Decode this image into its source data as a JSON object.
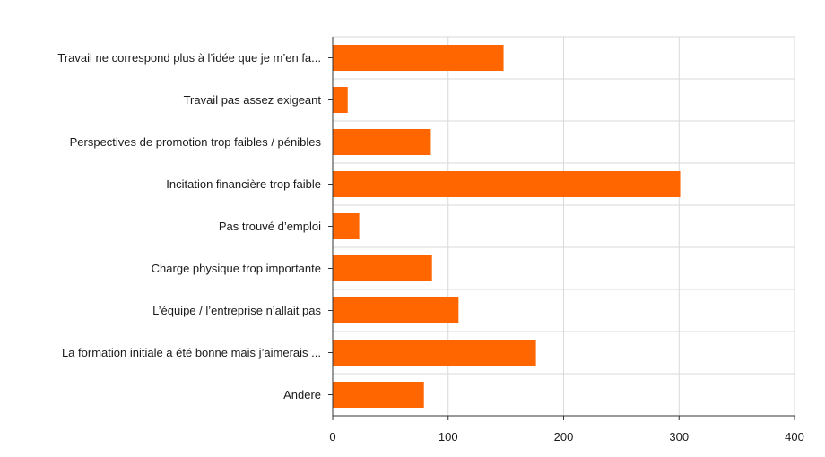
{
  "chart_data": {
    "type": "bar",
    "orientation": "horizontal",
    "title": "",
    "xlabel": "",
    "ylabel": "",
    "categories": [
      "Travail ne correspond plus à l’idée que je m’en fa...",
      "Travail pas assez exigeant",
      "Perspectives de promotion trop faibles / pénibles",
      "Incitation financière trop faible",
      "Pas trouvé d’emploi",
      "Charge physique trop importante",
      "L’équipe / l’entreprise n’allait pas",
      "La formation initiale a été bonne mais j’aimerais ...",
      "Andere"
    ],
    "values": [
      148,
      13,
      85,
      301,
      23,
      86,
      109,
      176,
      79
    ],
    "xlim": [
      0,
      400
    ],
    "xticks": [
      0,
      100,
      200,
      300,
      400
    ],
    "xtick_labels": [
      "0",
      "100",
      "200",
      "300",
      "400"
    ],
    "grid": true,
    "legend": "none",
    "bar_color": "#ff6600"
  }
}
